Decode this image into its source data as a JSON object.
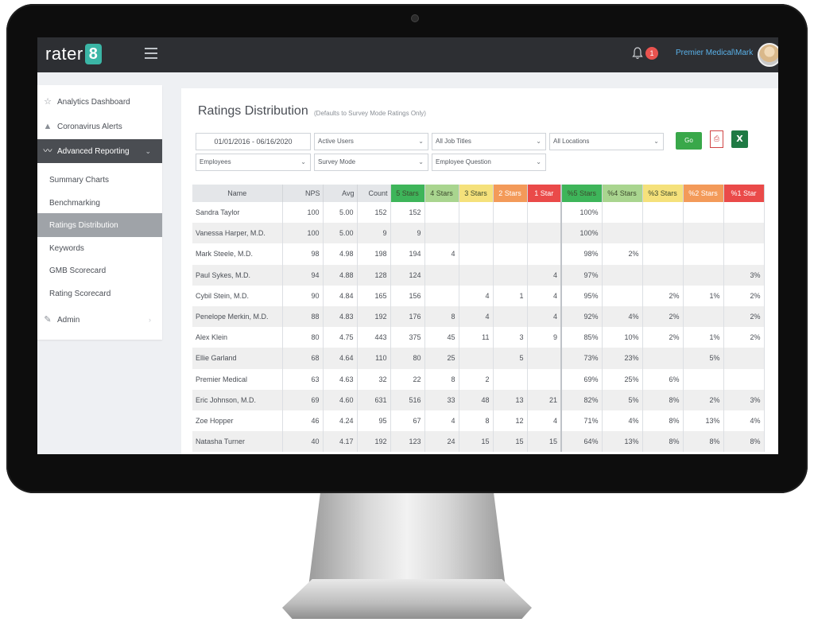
{
  "app": {
    "logo_text": "rater",
    "logo_badge": "8"
  },
  "header": {
    "notification_count": "1",
    "user": "Premier Medical\\Mark"
  },
  "sidebar": {
    "items": [
      {
        "label": "Analytics Dashboard",
        "icon": "star-icon"
      },
      {
        "label": "Coronavirus Alerts",
        "icon": "warning-icon"
      },
      {
        "label": "Advanced Reporting",
        "icon": "trend-chart-icon"
      },
      {
        "label": "Summary Charts"
      },
      {
        "label": "Benchmarking"
      },
      {
        "label": "Ratings Distribution"
      },
      {
        "label": "Keywords"
      },
      {
        "label": "GMB Scorecard"
      },
      {
        "label": "Rating Scorecard"
      },
      {
        "label": "Admin",
        "icon": "wrench-icon"
      }
    ]
  },
  "page": {
    "title": "Ratings Distribution",
    "subtitle": "(Defaults to Survey Mode Ratings Only)"
  },
  "filters": {
    "date_range": "01/01/2016 - 06/16/2020",
    "users": "Active Users",
    "job_titles": "All Job Titles",
    "locations": "All Locations",
    "employees": "Employees",
    "survey_mode": "Survey Mode",
    "question": "Employee Question",
    "go": "Go",
    "pdf_label": "⎙",
    "excel_label": "X"
  },
  "colors": {
    "5": "#3eb55a",
    "4": "#a9d58f",
    "3": "#f5e17b",
    "2": "#f39a59",
    "1": "#ea4a49"
  },
  "table": {
    "headers": [
      "Name",
      "NPS",
      "Avg",
      "Count",
      "5 Stars",
      "4 Stars",
      "3 Stars",
      "2 Stars",
      "1 Star",
      "%5 Stars",
      "%4 Stars",
      "%3 Stars",
      "%2 Stars",
      "%1 Star"
    ],
    "rows": [
      [
        "Sandra Taylor",
        "100",
        "5.00",
        "152",
        "152",
        "",
        "",
        "",
        "",
        "100%",
        "",
        "",
        "",
        ""
      ],
      [
        "Vanessa Harper, M.D.",
        "100",
        "5.00",
        "9",
        "9",
        "",
        "",
        "",
        "",
        "100%",
        "",
        "",
        "",
        ""
      ],
      [
        "Mark Steele, M.D.",
        "98",
        "4.98",
        "198",
        "194",
        "4",
        "",
        "",
        "",
        "98%",
        "2%",
        "",
        "",
        ""
      ],
      [
        "Paul Sykes, M.D.",
        "94",
        "4.88",
        "128",
        "124",
        "",
        "",
        "",
        "4",
        "97%",
        "",
        "",
        "",
        "3%"
      ],
      [
        "Cybil Stein, M.D.",
        "90",
        "4.84",
        "165",
        "156",
        "",
        "4",
        "1",
        "4",
        "95%",
        "",
        "2%",
        "1%",
        "2%"
      ],
      [
        "Penelope Merkin, M.D.",
        "88",
        "4.83",
        "192",
        "176",
        "8",
        "4",
        "",
        "4",
        "92%",
        "4%",
        "2%",
        "",
        "2%"
      ],
      [
        "Alex Klein",
        "80",
        "4.75",
        "443",
        "375",
        "45",
        "11",
        "3",
        "9",
        "85%",
        "10%",
        "2%",
        "1%",
        "2%"
      ],
      [
        "Ellie Garland",
        "68",
        "4.64",
        "110",
        "80",
        "25",
        "",
        "5",
        "",
        "73%",
        "23%",
        "",
        "5%",
        ""
      ],
      [
        "Premier Medical",
        "63",
        "4.63",
        "32",
        "22",
        "8",
        "2",
        "",
        "",
        "69%",
        "25%",
        "6%",
        "",
        ""
      ],
      [
        "Eric Johnson, M.D.",
        "69",
        "4.60",
        "631",
        "516",
        "33",
        "48",
        "13",
        "21",
        "82%",
        "5%",
        "8%",
        "2%",
        "3%"
      ],
      [
        "Zoe Hopper",
        "46",
        "4.24",
        "95",
        "67",
        "4",
        "8",
        "12",
        "4",
        "71%",
        "4%",
        "8%",
        "13%",
        "4%"
      ],
      [
        "Natasha Turner",
        "40",
        "4.17",
        "192",
        "123",
        "24",
        "15",
        "15",
        "15",
        "64%",
        "13%",
        "8%",
        "8%",
        "8%"
      ]
    ]
  }
}
